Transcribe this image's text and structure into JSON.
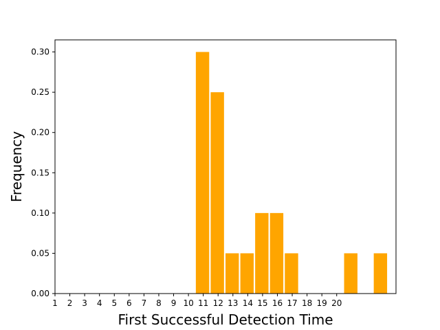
{
  "chart_data": {
    "type": "bar",
    "title": "",
    "xlabel": "First Successful Detection Time",
    "ylabel": "Frequency",
    "bar_color": "#ffa500",
    "xlim": [
      1,
      24
    ],
    "ylim": [
      0,
      0.315
    ],
    "x_ticks": [
      1,
      2,
      3,
      4,
      5,
      6,
      7,
      8,
      9,
      10,
      11,
      12,
      13,
      14,
      15,
      16,
      17,
      18,
      19,
      20
    ],
    "y_ticks": [
      0.0,
      0.05,
      0.1,
      0.15,
      0.2,
      0.25,
      0.3
    ],
    "y_tick_labels": [
      "0.00",
      "0.05",
      "0.10",
      "0.15",
      "0.20",
      "0.25",
      "0.30"
    ],
    "bin_width": 1,
    "bars": [
      {
        "x": 11,
        "value": 0.3
      },
      {
        "x": 12,
        "value": 0.25
      },
      {
        "x": 13,
        "value": 0.05
      },
      {
        "x": 14,
        "value": 0.05
      },
      {
        "x": 15,
        "value": 0.1
      },
      {
        "x": 16,
        "value": 0.1
      },
      {
        "x": 17,
        "value": 0.05
      },
      {
        "x": 21,
        "value": 0.05
      },
      {
        "x": 23,
        "value": 0.05
      }
    ],
    "grid": false,
    "legend": "none"
  }
}
